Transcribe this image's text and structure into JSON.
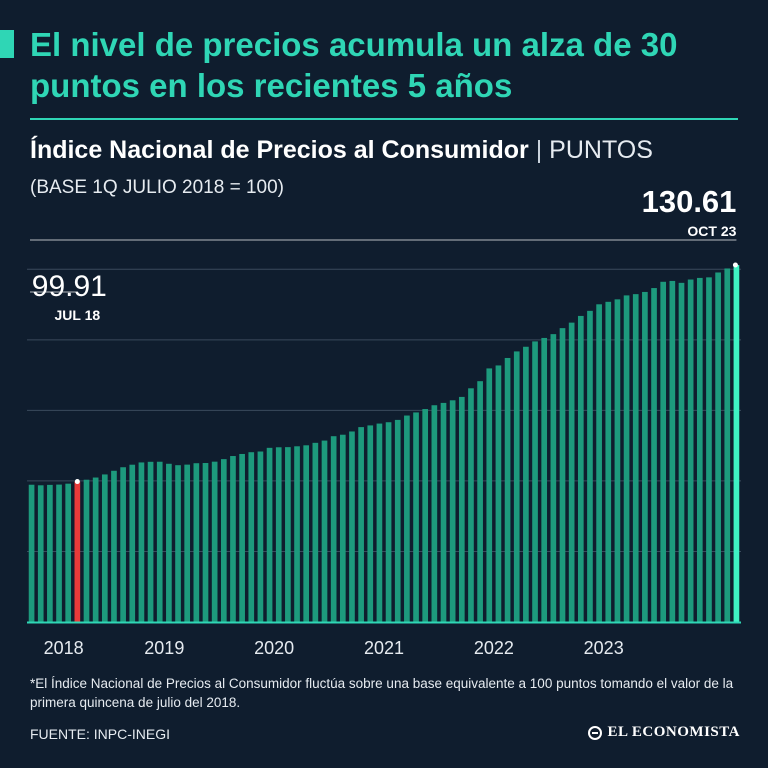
{
  "header": {
    "headline": "El nivel de precios acumula un alza de 30 puntos en los recientes 5 años"
  },
  "chart_data": {
    "type": "bar",
    "title": "Índice Nacional de Precios al Consumidor",
    "title_separator": "|",
    "unit": "PUNTOS",
    "subtitle": "(BASE 1Q JULIO 2018 = 100)",
    "xlabel": "",
    "ylabel": "",
    "ylim": [
      80,
      135
    ],
    "grid": true,
    "year_labels": [
      "2018",
      "2019",
      "2020",
      "2021",
      "2022",
      "2023"
    ],
    "start": "2018-04",
    "values": [
      99.46,
      99.38,
      99.44,
      99.48,
      99.61,
      99.91,
      100.17,
      100.48,
      100.92,
      101.44,
      101.94,
      102.3,
      102.62,
      102.71,
      102.72,
      102.43,
      102.23,
      102.31,
      102.51,
      102.54,
      102.73,
      103.09,
      103.53,
      103.82,
      104.07,
      104.17,
      104.69,
      104.77,
      104.79,
      104.91,
      105.05,
      105.4,
      105.72,
      106.34,
      106.55,
      107.01,
      107.63,
      107.87,
      108.13,
      108.32,
      108.65,
      109.27,
      109.71,
      110.19,
      110.73,
      111.06,
      111.43,
      111.91,
      113.13,
      114.14,
      115.95,
      116.37,
      117.43,
      118.36,
      119.02,
      119.78,
      120.27,
      120.81,
      121.66,
      122.44,
      123.39,
      124.11,
      125.04,
      125.39,
      125.74,
      126.3,
      126.48,
      126.79,
      127.34,
      128.23,
      128.35,
      128.08,
      128.55,
      128.78,
      128.86,
      129.55,
      130.12,
      130.61
    ],
    "annotations": [
      {
        "value": "99.91",
        "label": "JUL 18",
        "index": 5,
        "color": "#e83a3a"
      },
      {
        "value": "130.61",
        "label": "OCT 23",
        "index": 77,
        "color": "#3ff2c4"
      }
    ],
    "colors": {
      "bar": "#1d9a7d",
      "highlight_start": "#e83a3a",
      "highlight_end": "#3ff2c4",
      "grid": "#3a4a5c",
      "accent": "#2fd6b5"
    }
  },
  "footer": {
    "footnote": "*El Índice Nacional de Precios al Consumidor fluctúa sobre una base equivalente a 100 puntos tomando el valor de la primera quincena de julio del 2018.",
    "source": "FUENTE: INPC-INEGI",
    "brand": "EL ECONOMISTA",
    "brand_icon": "el-economista-logo-icon"
  }
}
